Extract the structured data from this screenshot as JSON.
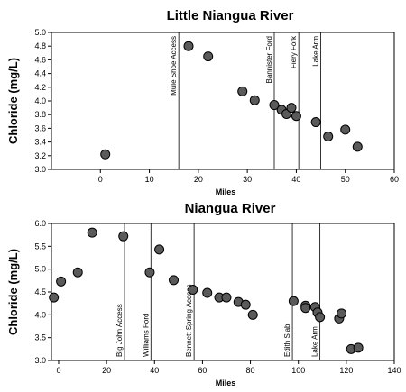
{
  "chart_data": [
    {
      "type": "scatter",
      "title": "Little Niangua River",
      "xlabel": "Miles",
      "ylabel": "Chloride (mg/L)",
      "xlim": [
        -10,
        60
      ],
      "ylim": [
        3.0,
        5.0
      ],
      "xticks": [
        "0",
        "10",
        "20",
        "30",
        "40",
        "50",
        "60"
      ],
      "yticks": [
        "3.0",
        "3.2",
        "3.4",
        "3.6",
        "3.8",
        "4.0",
        "4.2",
        "4.4",
        "4.6",
        "4.8",
        "5.0"
      ],
      "grid": false,
      "reference_lines": [
        {
          "label": "Mule Shoe Access",
          "x": 16
        },
        {
          "label": "Bannister Ford",
          "x": 35.5
        },
        {
          "label": "Fiery Fork",
          "x": 40.5
        },
        {
          "label": "Lake Arm",
          "x": 45
        }
      ],
      "series": [
        {
          "x": [
            1,
            18,
            22,
            29,
            31.5,
            35.5,
            37,
            38,
            39,
            40,
            44,
            46.5,
            50,
            52.5
          ],
          "y": [
            3.22,
            4.8,
            4.65,
            4.14,
            4.01,
            3.94,
            3.87,
            3.81,
            3.9,
            3.78,
            3.69,
            3.48,
            3.58,
            3.33
          ]
        }
      ]
    },
    {
      "type": "scatter",
      "title": "Niangua River",
      "xlabel": "Miles",
      "ylabel": "Chloride (mg/L)",
      "xlim": [
        -3,
        140
      ],
      "ylim": [
        3.0,
        6.0
      ],
      "xticks": [
        "0",
        "20",
        "40",
        "60",
        "80",
        "100",
        "120",
        "140"
      ],
      "yticks": [
        "3.0",
        "3.5",
        "4.0",
        "4.5",
        "5.0",
        "5.5",
        "6.0"
      ],
      "grid": false,
      "reference_lines": [
        {
          "label": "Big John Access",
          "x": 27.5
        },
        {
          "label": "Williams Ford",
          "x": 38.5
        },
        {
          "label": "Bennett Spring Access",
          "x": 56.5
        },
        {
          "label": "Edith Slab",
          "x": 97.5
        },
        {
          "label": "Lake Arm",
          "x": 109
        }
      ],
      "series": [
        {
          "x": [
            -2,
            1,
            8,
            14,
            27,
            38,
            42,
            48,
            56,
            62,
            67,
            70,
            75,
            78,
            81,
            98,
            103,
            103,
            107,
            108,
            109,
            117,
            118,
            122,
            125
          ],
          "y": [
            4.38,
            4.73,
            4.93,
            5.8,
            5.72,
            4.93,
            5.43,
            4.76,
            4.55,
            4.48,
            4.38,
            4.38,
            4.28,
            4.22,
            4.0,
            4.3,
            4.2,
            4.15,
            4.17,
            4.05,
            3.95,
            3.92,
            4.03,
            3.25,
            3.28
          ]
        }
      ]
    }
  ]
}
